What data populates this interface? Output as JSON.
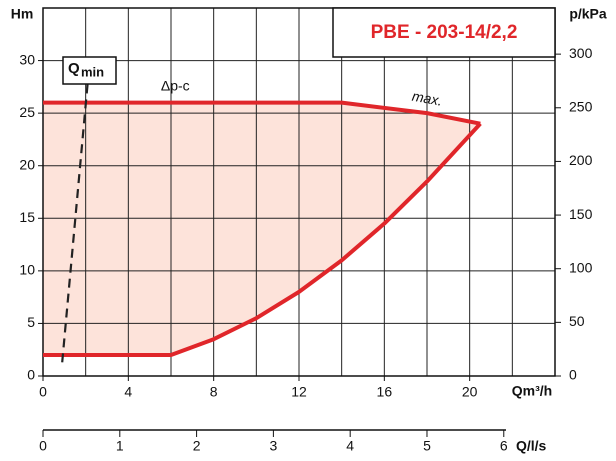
{
  "chart_data": {
    "type": "line",
    "title": "PBE - 203-14/2,2",
    "y_label": "Hm",
    "y2_label": "p/kPa",
    "x_label": "Qm³/h",
    "x2_label": "Q/l/s",
    "xlim": [
      0,
      24
    ],
    "xticks": [
      0,
      4,
      8,
      12,
      16,
      20
    ],
    "xgrid": [
      2,
      4,
      6,
      8,
      10,
      12,
      14,
      16,
      18,
      20,
      22
    ],
    "ylim": [
      0,
      35
    ],
    "yticks": [
      0,
      5,
      10,
      15,
      20,
      25,
      30
    ],
    "y2lim": [
      0,
      343
    ],
    "y2ticks": [
      0,
      50,
      100,
      150,
      200,
      250,
      300
    ],
    "x2lim": [
      0,
      6.667
    ],
    "x2ticks": [
      0,
      1,
      2,
      3,
      4,
      5,
      6
    ],
    "grid": true,
    "fill_color": "#fde3da",
    "series": [
      {
        "name": "Δp-c",
        "color": "#e0262a",
        "x": [
          0,
          14,
          18,
          20.5
        ],
        "values": [
          26,
          26,
          25,
          24
        ]
      },
      {
        "color": "#e0262a",
        "x": [
          0,
          6,
          8,
          10,
          12,
          14,
          16,
          18,
          20.5
        ],
        "values": [
          2,
          2,
          3.5,
          5.5,
          8,
          11,
          14.5,
          18.5,
          24
        ]
      }
    ],
    "annotations": [
      {
        "text": "max.",
        "x": 18,
        "y": 26.3
      }
    ],
    "qmin": {
      "label": "Q",
      "sub": "min",
      "color": "#222222",
      "x": [
        0.9,
        2.1
      ],
      "values": [
        1.3,
        28
      ]
    }
  }
}
